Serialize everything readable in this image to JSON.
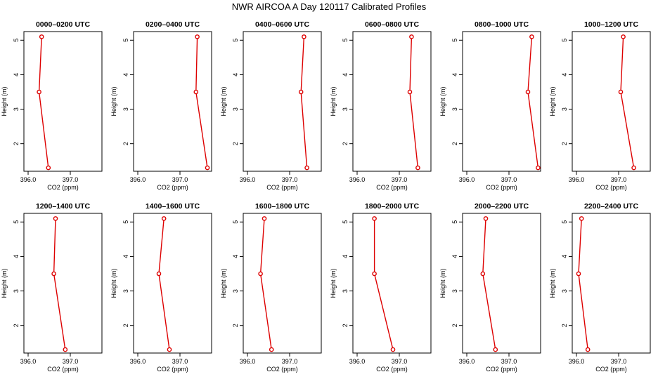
{
  "title": "NWR AIRCOA A  Day 120117  Calibrated Profiles",
  "chart_data": {
    "type": "line",
    "xlabel": "CO2 (ppm)",
    "ylabel": "Height (m)",
    "xlim": [
      395.9,
      397.75
    ],
    "ylim": [
      1.2,
      5.25
    ],
    "xticks": [
      "396.0",
      "397.0"
    ],
    "yticks": [
      "2",
      "3",
      "4",
      "5"
    ],
    "xticks_values": [
      396.0,
      397.0
    ],
    "yticks_values": [
      2,
      3,
      4,
      5
    ],
    "heights": [
      1.3,
      3.5,
      5.1
    ],
    "panels": [
      {
        "title": "0000–0200 UTC",
        "co2": [
          396.48,
          396.26,
          396.32
        ]
      },
      {
        "title": "0200–0400 UTC",
        "co2": [
          397.65,
          397.38,
          397.41
        ]
      },
      {
        "title": "0400–0600 UTC",
        "co2": [
          397.41,
          397.27,
          397.34
        ]
      },
      {
        "title": "0600–0800 UTC",
        "co2": [
          397.44,
          397.25,
          397.29
        ]
      },
      {
        "title": "0800–1000 UTC",
        "co2": [
          397.69,
          397.45,
          397.54
        ]
      },
      {
        "title": "1000–1200 UTC",
        "co2": [
          397.36,
          397.05,
          397.11
        ]
      },
      {
        "title": "1200–1400 UTC",
        "co2": [
          396.88,
          396.61,
          396.65
        ]
      },
      {
        "title": "1400–1600 UTC",
        "co2": [
          396.75,
          396.5,
          396.62
        ]
      },
      {
        "title": "1600–1800 UTC",
        "co2": [
          396.57,
          396.31,
          396.4
        ]
      },
      {
        "title": "1800–2000 UTC",
        "co2": [
          396.85,
          396.41,
          396.41
        ]
      },
      {
        "title": "2000–2200 UTC",
        "co2": [
          396.68,
          396.38,
          396.45
        ]
      },
      {
        "title": "2200–2400 UTC",
        "co2": [
          396.27,
          396.05,
          396.12
        ]
      }
    ],
    "colors": {
      "series": "#dd0000",
      "marker_fill": "#ffffff",
      "axes": "#000000"
    },
    "grid": false
  }
}
